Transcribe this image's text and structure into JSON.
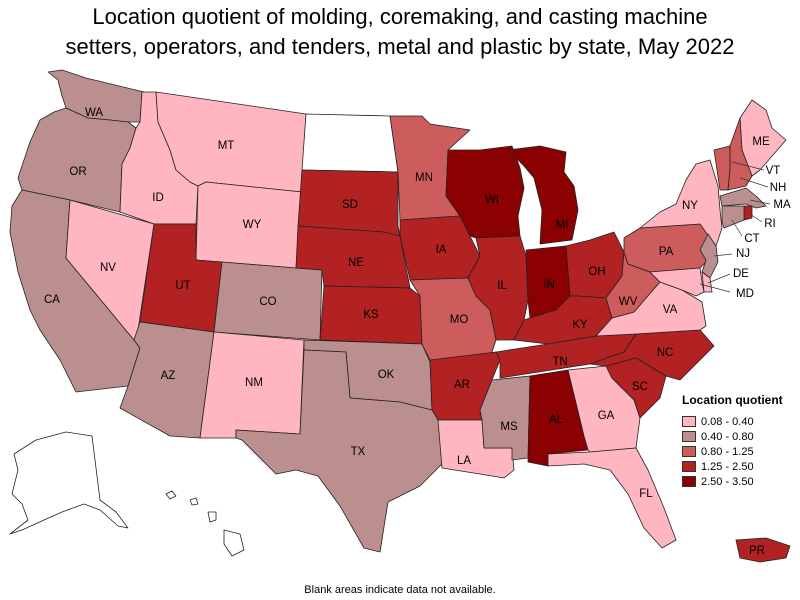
{
  "title_line1": "Location quotient of molding, coremaking, and casting machine",
  "title_line2": "setters, operators, and tenders, metal and plastic by state, May 2022",
  "footnote": "Blank areas indicate data not available.",
  "legend": {
    "title": "Location quotient",
    "bins": [
      {
        "label": "0.08 - 0.40",
        "color": "#ffb6c1"
      },
      {
        "label": "0.40 - 0.80",
        "color": "#bc8f8f"
      },
      {
        "label": "0.80 - 1.25",
        "color": "#cd5c5c"
      },
      {
        "label": "1.25 - 2.50",
        "color": "#b22222"
      },
      {
        "label": "2.50 - 3.50",
        "color": "#8b0000"
      }
    ]
  },
  "no_data_color": "#ffffff",
  "states": [
    {
      "abbr": "WA",
      "bin": 1
    },
    {
      "abbr": "OR",
      "bin": 1
    },
    {
      "abbr": "CA",
      "bin": 1
    },
    {
      "abbr": "ID",
      "bin": 0
    },
    {
      "abbr": "NV",
      "bin": 0
    },
    {
      "abbr": "MT",
      "bin": 0
    },
    {
      "abbr": "WY",
      "bin": 0
    },
    {
      "abbr": "UT",
      "bin": 3
    },
    {
      "abbr": "AZ",
      "bin": 1
    },
    {
      "abbr": "CO",
      "bin": 1
    },
    {
      "abbr": "NM",
      "bin": 0
    },
    {
      "abbr": "ND",
      "bin": null
    },
    {
      "abbr": "SD",
      "bin": 3
    },
    {
      "abbr": "NE",
      "bin": 3
    },
    {
      "abbr": "KS",
      "bin": 3
    },
    {
      "abbr": "OK",
      "bin": 1
    },
    {
      "abbr": "TX",
      "bin": 1
    },
    {
      "abbr": "MN",
      "bin": 2
    },
    {
      "abbr": "IA",
      "bin": 3
    },
    {
      "abbr": "MO",
      "bin": 2
    },
    {
      "abbr": "AR",
      "bin": 3
    },
    {
      "abbr": "LA",
      "bin": 0
    },
    {
      "abbr": "WI",
      "bin": 4
    },
    {
      "abbr": "IL",
      "bin": 3
    },
    {
      "abbr": "MI",
      "bin": 4
    },
    {
      "abbr": "IN",
      "bin": 4
    },
    {
      "abbr": "OH",
      "bin": 3
    },
    {
      "abbr": "KY",
      "bin": 3
    },
    {
      "abbr": "TN",
      "bin": 3
    },
    {
      "abbr": "MS",
      "bin": 1
    },
    {
      "abbr": "AL",
      "bin": 4
    },
    {
      "abbr": "GA",
      "bin": 0
    },
    {
      "abbr": "FL",
      "bin": 0
    },
    {
      "abbr": "SC",
      "bin": 3
    },
    {
      "abbr": "NC",
      "bin": 3
    },
    {
      "abbr": "VA",
      "bin": 0
    },
    {
      "abbr": "WV",
      "bin": 2
    },
    {
      "abbr": "PA",
      "bin": 2
    },
    {
      "abbr": "NY",
      "bin": 0
    },
    {
      "abbr": "ME",
      "bin": 0
    },
    {
      "abbr": "VT",
      "bin": 2
    },
    {
      "abbr": "NH",
      "bin": 2
    },
    {
      "abbr": "MA",
      "bin": 1
    },
    {
      "abbr": "RI",
      "bin": 3
    },
    {
      "abbr": "CT",
      "bin": 1
    },
    {
      "abbr": "NJ",
      "bin": 1
    },
    {
      "abbr": "DE",
      "bin": 0
    },
    {
      "abbr": "MD",
      "bin": 0
    },
    {
      "abbr": "AK",
      "bin": null
    },
    {
      "abbr": "HI",
      "bin": null
    },
    {
      "abbr": "PR",
      "bin": 3
    }
  ]
}
